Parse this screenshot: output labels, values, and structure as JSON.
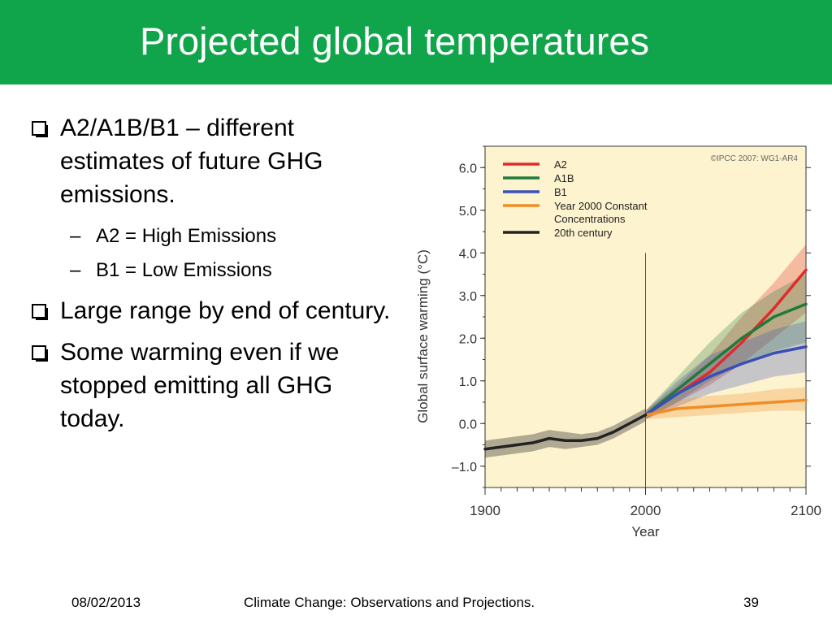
{
  "slide": {
    "title": "Projected global temperatures",
    "bullets": [
      "A2/A1B/B1 – different estimates of future GHG emissions.",
      "Large range by end of century.",
      "Some warming even if we stopped emitting all GHG today."
    ],
    "sub_bullets": [
      "A2 = High Emissions",
      "B1 = Low Emissions"
    ],
    "dash": "–"
  },
  "footer": {
    "date": "08/02/2013",
    "text": "Climate Change: Observations and Projections.",
    "page": "39"
  },
  "colors": {
    "header": "#10a54a",
    "plot_bg": "#fdf3cf",
    "a2": "#e02b2b",
    "a1b": "#1f7a3b",
    "b1": "#3a4fb5",
    "constant": "#f18c26",
    "twentieth": "#222222"
  },
  "chart_data": {
    "type": "line",
    "xlabel": "Year",
    "ylabel": "Global surface warming (°C)",
    "xlim": [
      1900,
      2100
    ],
    "ylim": [
      -1.5,
      6.5
    ],
    "x_ticks": [
      1900,
      2000,
      2100
    ],
    "y_ticks": [
      6.0,
      5.0,
      4.0,
      3.0,
      2.0,
      1.0,
      0.0,
      -1.0
    ],
    "y_tick_labels": [
      "6.0",
      "5.0",
      "4.0",
      "3.0",
      "2.0",
      "1.0",
      "0.0",
      "–1.0"
    ],
    "x_tick_labels": [
      "1900",
      "2000",
      "2100"
    ],
    "credit": "©IPCC  2007: WG1-AR4",
    "legend_position": "top-left",
    "vertical_line_x": 2000,
    "series": [
      {
        "name": "A2",
        "color_key": "a2",
        "x": [
          2000,
          2020,
          2040,
          2060,
          2080,
          2100
        ],
        "y": [
          0.2,
          0.7,
          1.2,
          1.9,
          2.7,
          3.6
        ],
        "band": [
          [
            0.1,
            0.3
          ],
          [
            0.5,
            0.9
          ],
          [
            0.9,
            1.6
          ],
          [
            1.4,
            2.5
          ],
          [
            2.0,
            3.3
          ],
          [
            2.6,
            4.2
          ]
        ]
      },
      {
        "name": "A1B",
        "color_key": "a1b",
        "x": [
          2000,
          2020,
          2040,
          2060,
          2080,
          2100
        ],
        "y": [
          0.2,
          0.8,
          1.4,
          2.0,
          2.5,
          2.8
        ],
        "band": [
          [
            0.1,
            0.3
          ],
          [
            0.5,
            1.1
          ],
          [
            1.0,
            1.9
          ],
          [
            1.4,
            2.6
          ],
          [
            1.7,
            3.1
          ],
          [
            1.9,
            3.5
          ]
        ]
      },
      {
        "name": "B1",
        "color_key": "b1",
        "x": [
          2000,
          2020,
          2040,
          2060,
          2080,
          2100
        ],
        "y": [
          0.2,
          0.7,
          1.1,
          1.4,
          1.65,
          1.8
        ],
        "band": [
          [
            0.1,
            0.3
          ],
          [
            0.4,
            1.0
          ],
          [
            0.7,
            1.6
          ],
          [
            0.9,
            1.9
          ],
          [
            1.1,
            2.2
          ],
          [
            1.2,
            2.4
          ]
        ]
      },
      {
        "name": "Year 2000 Constant Concentrations",
        "legend_lines": [
          "Year 2000 Constant",
          "Concentrations"
        ],
        "color_key": "constant",
        "x": [
          2000,
          2020,
          2040,
          2060,
          2080,
          2100
        ],
        "y": [
          0.2,
          0.35,
          0.4,
          0.45,
          0.5,
          0.55
        ],
        "band": [
          [
            0.1,
            0.3
          ],
          [
            0.15,
            0.55
          ],
          [
            0.2,
            0.65
          ],
          [
            0.25,
            0.7
          ],
          [
            0.3,
            0.8
          ],
          [
            0.3,
            0.85
          ]
        ]
      },
      {
        "name": "20th century",
        "color_key": "twentieth",
        "x": [
          1900,
          1910,
          1920,
          1930,
          1940,
          1950,
          1960,
          1970,
          1980,
          1990,
          2000
        ],
        "y": [
          -0.6,
          -0.55,
          -0.5,
          -0.45,
          -0.35,
          -0.4,
          -0.4,
          -0.35,
          -0.2,
          0.0,
          0.2
        ],
        "band": [
          [
            -0.8,
            -0.4
          ],
          [
            -0.75,
            -0.35
          ],
          [
            -0.7,
            -0.3
          ],
          [
            -0.65,
            -0.25
          ],
          [
            -0.55,
            -0.15
          ],
          [
            -0.6,
            -0.2
          ],
          [
            -0.55,
            -0.25
          ],
          [
            -0.5,
            -0.2
          ],
          [
            -0.35,
            -0.05
          ],
          [
            -0.15,
            0.15
          ],
          [
            0.05,
            0.35
          ]
        ]
      }
    ]
  }
}
